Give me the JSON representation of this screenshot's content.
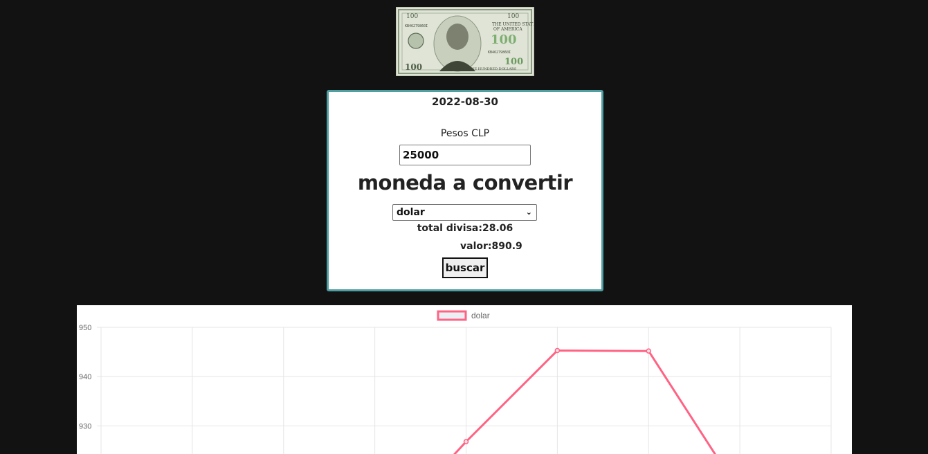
{
  "header": {
    "banknote_image": "hundred-dollar-bill"
  },
  "converter": {
    "date": "2022-08-30",
    "pesos_label": "Pesos CLP",
    "amount_value": "25000",
    "heading": "moneda a convertir",
    "currency_selected": "dolar",
    "total_label": "total divisa:",
    "total_value": "28.06",
    "valor_label": "valor:",
    "valor_value": "890.9",
    "search_label": "buscar"
  },
  "colors": {
    "card_border": "#4f9fa3",
    "line": "#ff6384",
    "background": "#121212"
  },
  "chart_data": {
    "type": "line",
    "legend_position": "top",
    "grid": true,
    "series": [
      {
        "name": "dolar",
        "values": [
          null,
          null,
          null,
          null,
          926.8,
          945.3,
          945.2,
          null,
          null
        ]
      }
    ],
    "y_ticks": [
      950,
      940,
      930
    ],
    "ylim": [
      920,
      950
    ]
  }
}
